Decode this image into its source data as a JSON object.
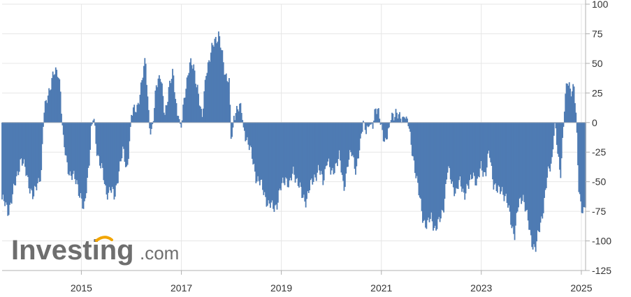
{
  "watermark": {
    "brand": "Investing",
    "suffix": ".com"
  },
  "colors": {
    "bar": "#4e7bb3",
    "bar_stroke": "#3d6aa3",
    "grid": "#e6e6e6",
    "zero": "#9aa6b8",
    "axis": "#b0b0b0",
    "watermark_text": "#6e6e6e",
    "watermark_accent": "#f2a500"
  },
  "chart_data": {
    "type": "bar",
    "ylim": [
      -125,
      100
    ],
    "y_ticks": [
      100,
      75,
      50,
      25,
      0,
      -25,
      -50,
      -75,
      -100,
      -125
    ],
    "y_tick_labels": [
      "100",
      "75",
      "50",
      "25",
      "0",
      "-25",
      "-50",
      "-75",
      "-100",
      "-125"
    ],
    "x_tick_labels": [
      "2015",
      "2017",
      "2019",
      "2021",
      "2023",
      "2025"
    ],
    "x_ticks": [
      "2015-01-01",
      "2017-01-01",
      "2019-01-01",
      "2021-01-01",
      "2023-01-01",
      "2025-01-01"
    ],
    "x_range": [
      "2013-06-01",
      "2025-02-01"
    ],
    "frequency": "weekly",
    "grid": true,
    "legend": "none",
    "y_axis_side": "right",
    "anchors": [
      [
        "2013-06-01",
        -65
      ],
      [
        "2013-07-15",
        -75
      ],
      [
        "2013-09-01",
        -55
      ],
      [
        "2013-10-15",
        -30
      ],
      [
        "2013-12-01",
        -45
      ],
      [
        "2014-01-15",
        -65
      ],
      [
        "2014-02-15",
        -50
      ],
      [
        "2014-03-15",
        -42
      ],
      [
        "2014-04-01",
        5
      ],
      [
        "2014-05-01",
        25
      ],
      [
        "2014-06-15",
        40
      ],
      [
        "2014-07-15",
        45
      ],
      [
        "2014-08-01",
        30
      ],
      [
        "2014-08-20",
        -15
      ],
      [
        "2014-09-15",
        -32
      ],
      [
        "2014-10-15",
        -45
      ],
      [
        "2014-12-01",
        -50
      ],
      [
        "2015-01-01",
        -65
      ],
      [
        "2015-01-20",
        -78
      ],
      [
        "2015-02-15",
        -45
      ],
      [
        "2015-03-01",
        -30
      ],
      [
        "2015-03-15",
        -5
      ],
      [
        "2015-04-01",
        5
      ],
      [
        "2015-04-20",
        -20
      ],
      [
        "2015-06-01",
        -40
      ],
      [
        "2015-07-01",
        -60
      ],
      [
        "2015-08-01",
        -55
      ],
      [
        "2015-09-01",
        -65
      ],
      [
        "2015-10-01",
        -40
      ],
      [
        "2015-11-01",
        -25
      ],
      [
        "2015-12-01",
        -40
      ],
      [
        "2016-01-01",
        5
      ],
      [
        "2016-02-15",
        15
      ],
      [
        "2016-03-15",
        30
      ],
      [
        "2016-04-15",
        55
      ],
      [
        "2016-05-01",
        20
      ],
      [
        "2016-05-20",
        -10
      ],
      [
        "2016-06-15",
        5
      ],
      [
        "2016-07-01",
        35
      ],
      [
        "2016-08-01",
        40
      ],
      [
        "2016-09-01",
        5
      ],
      [
        "2016-10-01",
        30
      ],
      [
        "2016-11-01",
        40
      ],
      [
        "2016-12-01",
        10
      ],
      [
        "2017-01-01",
        -5
      ],
      [
        "2017-02-01",
        30
      ],
      [
        "2017-03-01",
        50
      ],
      [
        "2017-04-01",
        45
      ],
      [
        "2017-05-01",
        30
      ],
      [
        "2017-06-01",
        0
      ],
      [
        "2017-07-01",
        45
      ],
      [
        "2017-08-01",
        55
      ],
      [
        "2017-09-01",
        70
      ],
      [
        "2017-10-01",
        75
      ],
      [
        "2017-10-20",
        60
      ],
      [
        "2017-11-15",
        42
      ],
      [
        "2017-12-15",
        38
      ],
      [
        "2018-01-01",
        -20
      ],
      [
        "2018-01-20",
        5
      ],
      [
        "2018-02-15",
        15
      ],
      [
        "2018-03-15",
        10
      ],
      [
        "2018-04-01",
        -5
      ],
      [
        "2018-05-01",
        -15
      ],
      [
        "2018-06-01",
        -30
      ],
      [
        "2018-07-01",
        -45
      ],
      [
        "2018-08-01",
        -52
      ],
      [
        "2018-09-01",
        -60
      ],
      [
        "2018-10-01",
        -70
      ],
      [
        "2018-11-01",
        -72
      ],
      [
        "2018-12-01",
        -68
      ],
      [
        "2019-01-01",
        -55
      ],
      [
        "2019-02-01",
        -45
      ],
      [
        "2019-03-01",
        -55
      ],
      [
        "2019-04-01",
        -40
      ],
      [
        "2019-05-01",
        -50
      ],
      [
        "2019-06-01",
        -62
      ],
      [
        "2019-07-01",
        -65
      ],
      [
        "2019-08-01",
        -55
      ],
      [
        "2019-09-01",
        -45
      ],
      [
        "2019-10-01",
        -40
      ],
      [
        "2019-11-01",
        -50
      ],
      [
        "2019-12-01",
        -30
      ],
      [
        "2020-01-01",
        -45
      ],
      [
        "2020-02-01",
        -35
      ],
      [
        "2020-03-01",
        -30
      ],
      [
        "2020-04-01",
        -55
      ],
      [
        "2020-05-01",
        -35
      ],
      [
        "2020-06-01",
        -25
      ],
      [
        "2020-07-01",
        -40
      ],
      [
        "2020-08-01",
        -20
      ],
      [
        "2020-08-20",
        2
      ],
      [
        "2020-09-15",
        -5
      ],
      [
        "2020-11-01",
        0
      ],
      [
        "2020-11-20",
        15
      ],
      [
        "2020-12-15",
        5
      ],
      [
        "2021-01-01",
        -5
      ],
      [
        "2021-02-01",
        -15
      ],
      [
        "2021-02-20",
        -8
      ],
      [
        "2021-03-15",
        5
      ],
      [
        "2021-04-15",
        10
      ],
      [
        "2021-05-15",
        2
      ],
      [
        "2021-06-15",
        5
      ],
      [
        "2021-07-15",
        0
      ],
      [
        "2021-08-01",
        -15
      ],
      [
        "2021-09-01",
        -35
      ],
      [
        "2021-10-01",
        -60
      ],
      [
        "2021-11-01",
        -80
      ],
      [
        "2021-12-01",
        -88
      ],
      [
        "2022-01-01",
        -80
      ],
      [
        "2022-02-01",
        -90
      ],
      [
        "2022-03-01",
        -85
      ],
      [
        "2022-04-01",
        -70
      ],
      [
        "2022-05-01",
        -40
      ],
      [
        "2022-06-01",
        -50
      ],
      [
        "2022-07-01",
        -60
      ],
      [
        "2022-08-01",
        -50
      ],
      [
        "2022-09-01",
        -60
      ],
      [
        "2022-10-01",
        -55
      ],
      [
        "2022-11-01",
        -40
      ],
      [
        "2022-12-01",
        -55
      ],
      [
        "2023-01-01",
        -35
      ],
      [
        "2023-02-01",
        -45
      ],
      [
        "2023-03-01",
        -25
      ],
      [
        "2023-04-01",
        -50
      ],
      [
        "2023-05-01",
        -60
      ],
      [
        "2023-06-01",
        -55
      ],
      [
        "2023-07-01",
        -65
      ],
      [
        "2023-08-01",
        -80
      ],
      [
        "2023-09-01",
        -95
      ],
      [
        "2023-10-01",
        -70
      ],
      [
        "2023-11-01",
        -60
      ],
      [
        "2023-12-01",
        -80
      ],
      [
        "2024-01-01",
        -98
      ],
      [
        "2024-02-01",
        -108
      ],
      [
        "2024-03-01",
        -90
      ],
      [
        "2024-04-01",
        -70
      ],
      [
        "2024-05-01",
        -45
      ],
      [
        "2024-06-01",
        -30
      ],
      [
        "2024-06-20",
        2
      ],
      [
        "2024-07-15",
        -30
      ],
      [
        "2024-08-01",
        -45
      ],
      [
        "2024-09-01",
        15
      ],
      [
        "2024-09-20",
        33
      ],
      [
        "2024-10-15",
        28
      ],
      [
        "2024-11-10",
        32
      ],
      [
        "2024-11-25",
        0
      ],
      [
        "2024-12-15",
        -60
      ],
      [
        "2025-01-15",
        -75
      ],
      [
        "2025-02-01",
        -70
      ]
    ]
  }
}
